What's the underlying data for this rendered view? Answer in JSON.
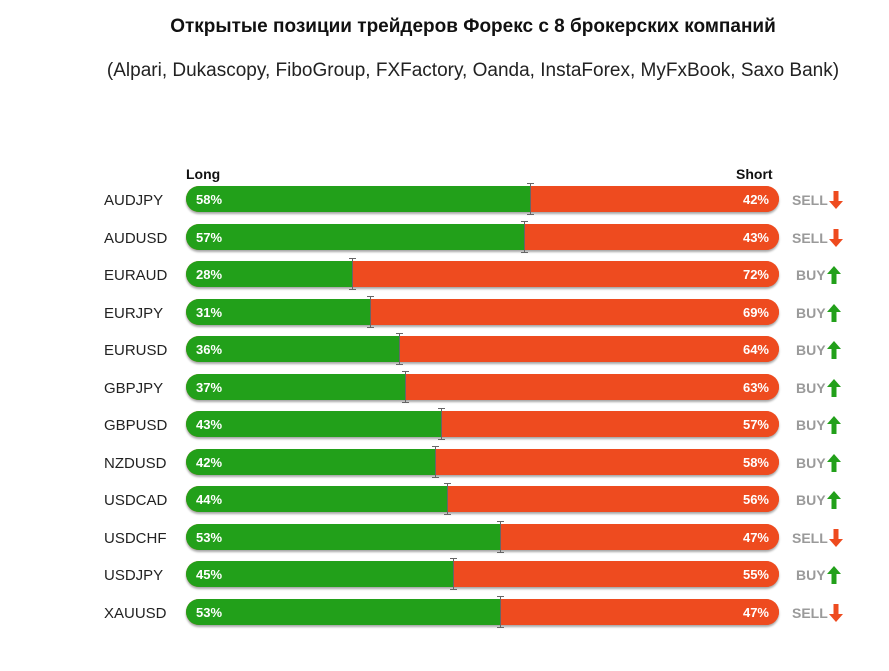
{
  "title": "Открытые позиции трейдеров Форекс с 8 брокерских компаний",
  "subtitle": "(Alpari, Dukascopy, FiboGroup, FXFactory, Oanda, InstaForex, MyFxBook, Saxo Bank)",
  "colors": {
    "long": "#22a01a",
    "short": "#ee4b1f",
    "buy_arrow": "#22a01a",
    "sell_arrow": "#ee4b1f",
    "signal_text": "#9a9a9a"
  },
  "chart_data": {
    "type": "bar",
    "title": "Открытые позиции трейдеров Форекс с 8 брокерских компаний",
    "subtitle": "(Alpari, Dukascopy, FiboGroup, FXFactory, Oanda, InstaForex, MyFxBook, Saxo Bank)",
    "stacked": true,
    "orientation": "horizontal",
    "legend": {
      "long_label": "Long",
      "short_label": "Short"
    },
    "xlim": [
      0,
      100
    ],
    "categories": [
      "AUDJPY",
      "AUDUSD",
      "EURAUD",
      "EURJPY",
      "EURUSD",
      "GBPJPY",
      "GBPUSD",
      "NZDUSD",
      "USDCAD",
      "USDCHF",
      "USDJPY",
      "XAUUSD"
    ],
    "series": [
      {
        "name": "Long",
        "values": [
          58,
          57,
          28,
          31,
          36,
          37,
          43,
          42,
          44,
          53,
          45,
          53
        ]
      },
      {
        "name": "Short",
        "values": [
          42,
          43,
          72,
          69,
          64,
          63,
          57,
          58,
          56,
          47,
          55,
          47
        ]
      }
    ],
    "rows": [
      {
        "symbol": "AUDJPY",
        "long": 58,
        "short": 42,
        "long_label": "58%",
        "short_label": "42%",
        "signal": "SELL"
      },
      {
        "symbol": "AUDUSD",
        "long": 57,
        "short": 43,
        "long_label": "57%",
        "short_label": "43%",
        "signal": "SELL"
      },
      {
        "symbol": "EURAUD",
        "long": 28,
        "short": 72,
        "long_label": "28%",
        "short_label": "72%",
        "signal": "BUY"
      },
      {
        "symbol": "EURJPY",
        "long": 31,
        "short": 69,
        "long_label": "31%",
        "short_label": "69%",
        "signal": "BUY"
      },
      {
        "symbol": "EURUSD",
        "long": 36,
        "short": 64,
        "long_label": "36%",
        "short_label": "64%",
        "signal": "BUY"
      },
      {
        "symbol": "GBPJPY",
        "long": 37,
        "short": 63,
        "long_label": "37%",
        "short_label": "63%",
        "signal": "BUY"
      },
      {
        "symbol": "GBPUSD",
        "long": 43,
        "short": 57,
        "long_label": "43%",
        "short_label": "57%",
        "signal": "BUY"
      },
      {
        "symbol": "NZDUSD",
        "long": 42,
        "short": 58,
        "long_label": "42%",
        "short_label": "58%",
        "signal": "BUY"
      },
      {
        "symbol": "USDCAD",
        "long": 44,
        "short": 56,
        "long_label": "44%",
        "short_label": "56%",
        "signal": "BUY"
      },
      {
        "symbol": "USDCHF",
        "long": 53,
        "short": 47,
        "long_label": "53%",
        "short_label": "47%",
        "signal": "SELL"
      },
      {
        "symbol": "USDJPY",
        "long": 45,
        "short": 55,
        "long_label": "45%",
        "short_label": "55%",
        "signal": "BUY"
      },
      {
        "symbol": "XAUUSD",
        "long": 53,
        "short": 47,
        "long_label": "53%",
        "short_label": "47%",
        "signal": "SELL"
      }
    ]
  }
}
